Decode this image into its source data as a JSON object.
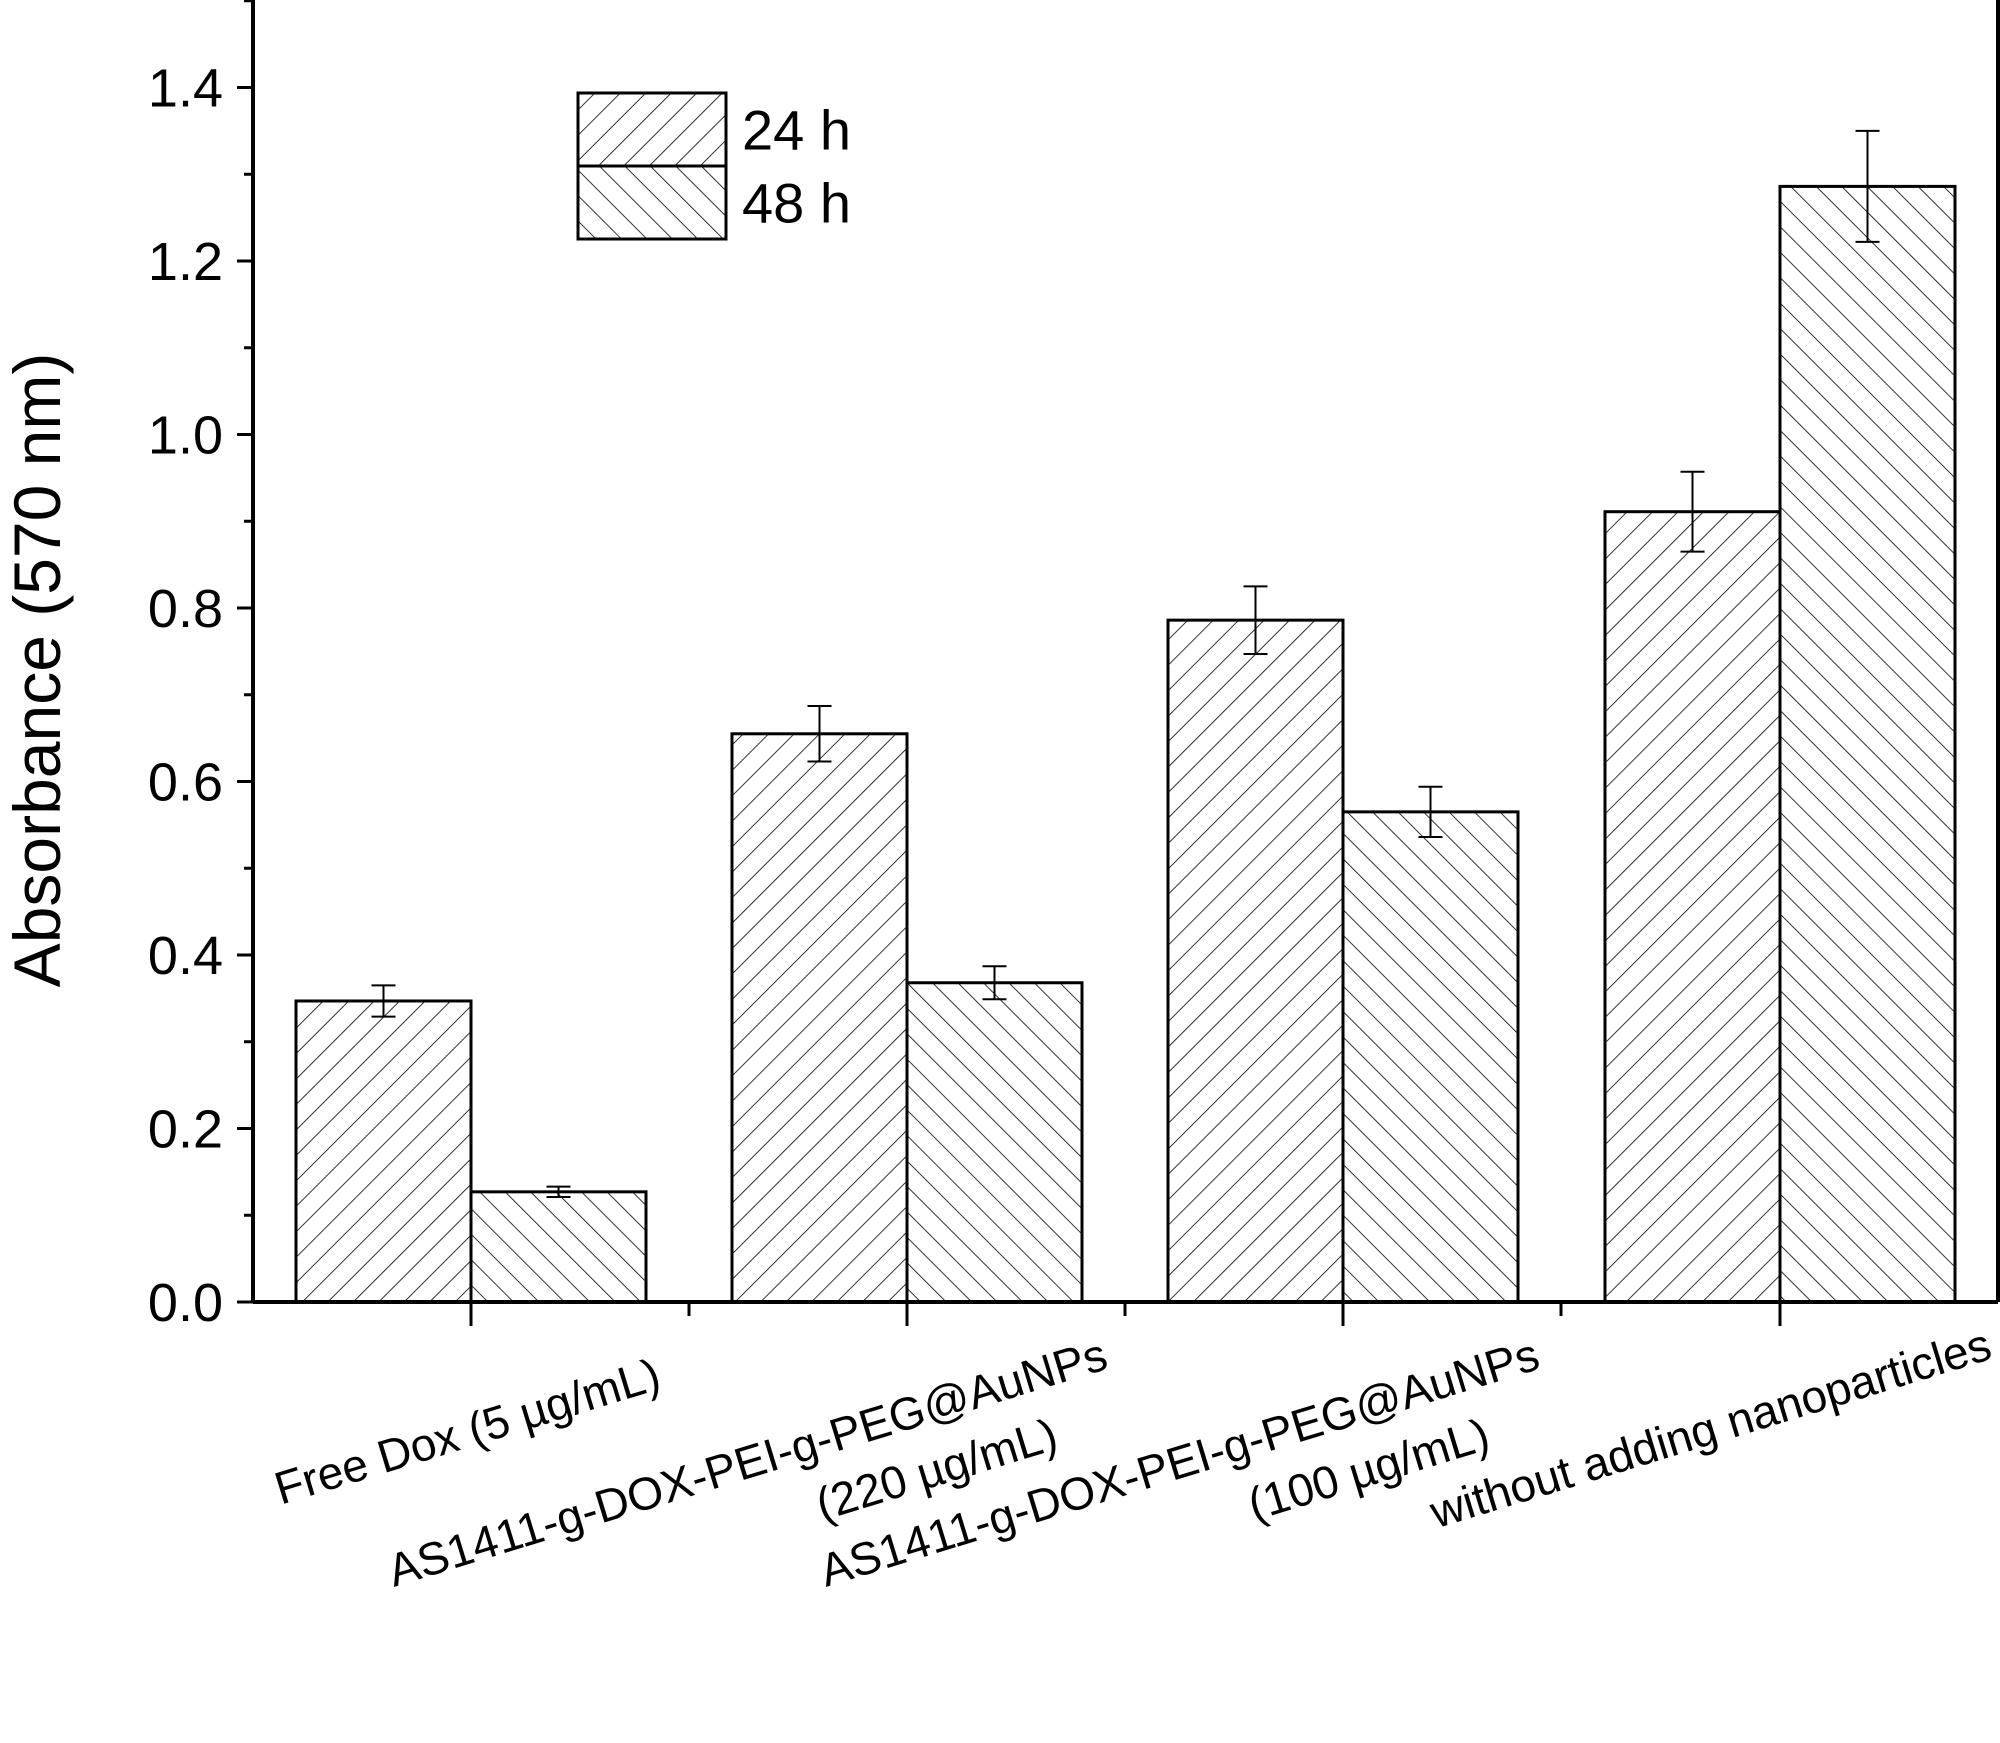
{
  "chart_data": {
    "type": "bar",
    "ylabel": "Absorbance (570 nm)",
    "xlabel": "",
    "ylim": [
      0,
      1.5
    ],
    "yticks": [
      0.0,
      0.2,
      0.4,
      0.6,
      0.8,
      1.0,
      1.2,
      1.4
    ],
    "ytick_labels": [
      "0.0",
      "0.2",
      "0.4",
      "0.6",
      "0.8",
      "1.0",
      "1.2",
      "1.4"
    ],
    "categories": [
      [
        "Free Dox (5 µg/mL)"
      ],
      [
        "AS1411-g-DOX-PEI-g-PEG@AuNPs",
        "(220 µg/mL)"
      ],
      [
        "AS1411-g-DOX-PEI-g-PEG@AuNPs",
        "(100 µg/mL)"
      ],
      [
        "without adding nanoparticles"
      ]
    ],
    "series": [
      {
        "name": "24 h",
        "pattern": "hatch-forward",
        "values": [
          0.347,
          0.655,
          0.786,
          0.911
        ],
        "errors": [
          0.018,
          0.032,
          0.039,
          0.046
        ]
      },
      {
        "name": "48 h",
        "pattern": "hatch-back",
        "values": [
          0.127,
          0.368,
          0.565,
          1.286
        ],
        "errors": [
          0.006,
          0.019,
          0.029,
          0.064
        ]
      }
    ],
    "legend_position": "top-left",
    "grid": false
  }
}
